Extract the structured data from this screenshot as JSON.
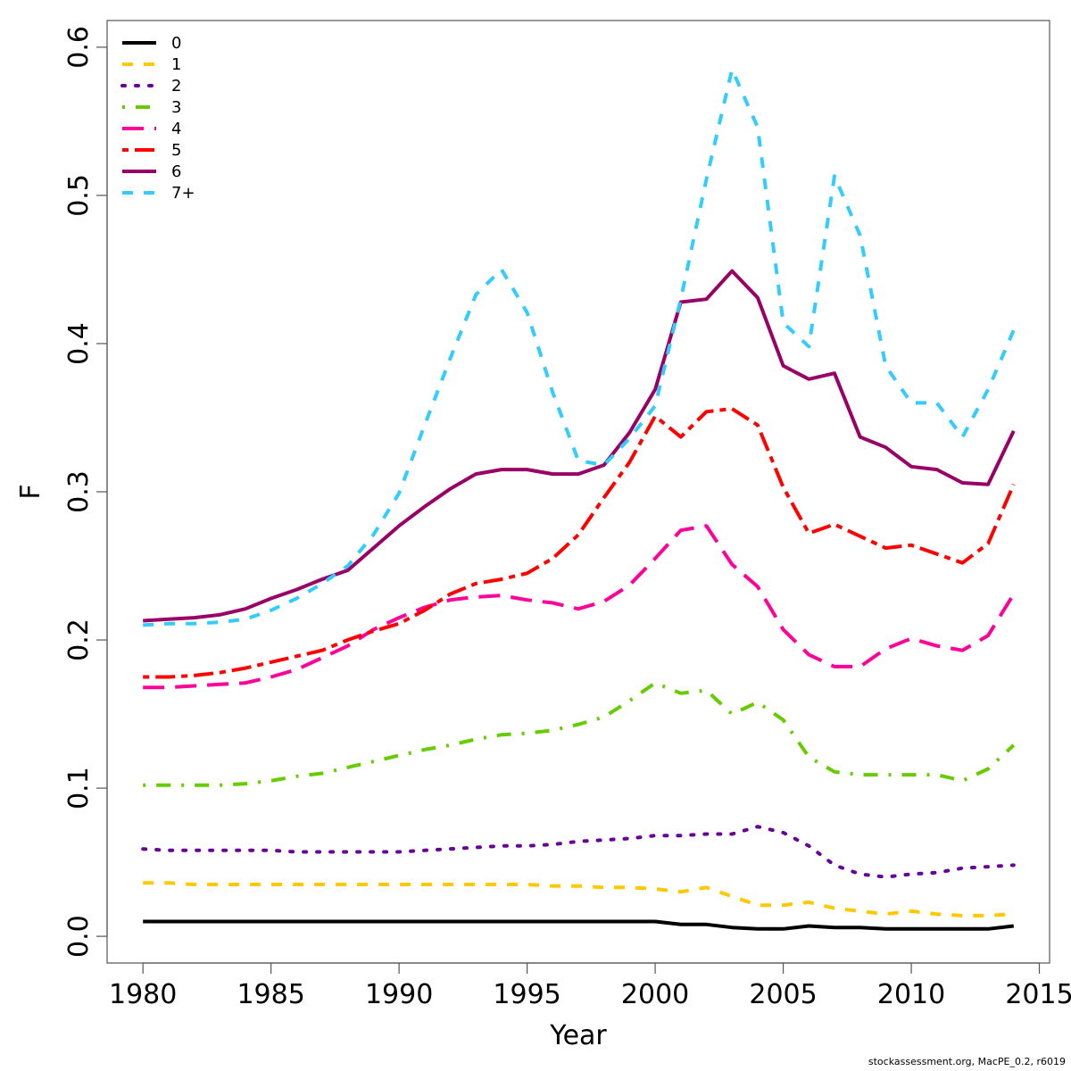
{
  "chart_data": {
    "type": "line",
    "title": "",
    "xlabel": "Year",
    "ylabel": "F",
    "xlim": [
      1978.6,
      2015.4
    ],
    "ylim": [
      -0.018,
      0.618
    ],
    "xticks": [
      1980,
      1985,
      1990,
      1995,
      2000,
      2005,
      2010,
      2015
    ],
    "yticks": [
      0.0,
      0.1,
      0.2,
      0.3,
      0.4,
      0.5,
      0.6
    ],
    "ytick_labels": [
      "0.0",
      "0.1",
      "0.2",
      "0.3",
      "0.4",
      "0.5",
      "0.6"
    ],
    "grid": false,
    "legend_position": "top-left",
    "x": [
      1980,
      1981,
      1982,
      1983,
      1984,
      1985,
      1986,
      1987,
      1988,
      1989,
      1990,
      1991,
      1992,
      1993,
      1994,
      1995,
      1996,
      1997,
      1998,
      1999,
      2000,
      2001,
      2002,
      2003,
      2004,
      2005,
      2006,
      2007,
      2008,
      2009,
      2010,
      2011,
      2012,
      2013,
      2014
    ],
    "series": [
      {
        "name": "0",
        "color": "#000000",
        "dash": "solid",
        "values": [
          0.01,
          0.01,
          0.01,
          0.01,
          0.01,
          0.01,
          0.01,
          0.01,
          0.01,
          0.01,
          0.01,
          0.01,
          0.01,
          0.01,
          0.01,
          0.01,
          0.01,
          0.01,
          0.01,
          0.01,
          0.01,
          0.008,
          0.008,
          0.006,
          0.005,
          0.005,
          0.007,
          0.006,
          0.006,
          0.005,
          0.005,
          0.005,
          0.005,
          0.005,
          0.007
        ]
      },
      {
        "name": "1",
        "color": "#FFC800",
        "dash": "dashed",
        "values": [
          0.036,
          0.036,
          0.035,
          0.035,
          0.035,
          0.035,
          0.035,
          0.035,
          0.035,
          0.035,
          0.035,
          0.035,
          0.035,
          0.035,
          0.035,
          0.035,
          0.034,
          0.034,
          0.033,
          0.033,
          0.032,
          0.03,
          0.033,
          0.027,
          0.021,
          0.021,
          0.023,
          0.019,
          0.017,
          0.015,
          0.017,
          0.015,
          0.014,
          0.014,
          0.015
        ]
      },
      {
        "name": "2",
        "color": "#660099",
        "dash": "dotted",
        "values": [
          0.059,
          0.058,
          0.058,
          0.058,
          0.058,
          0.058,
          0.057,
          0.057,
          0.057,
          0.057,
          0.057,
          0.058,
          0.059,
          0.06,
          0.061,
          0.061,
          0.062,
          0.064,
          0.065,
          0.066,
          0.068,
          0.068,
          0.069,
          0.069,
          0.074,
          0.07,
          0.061,
          0.048,
          0.042,
          0.04,
          0.042,
          0.043,
          0.046,
          0.047,
          0.048
        ]
      },
      {
        "name": "3",
        "color": "#66CC00",
        "dash": "dotdash",
        "values": [
          0.102,
          0.102,
          0.102,
          0.102,
          0.103,
          0.105,
          0.108,
          0.11,
          0.114,
          0.118,
          0.122,
          0.126,
          0.129,
          0.133,
          0.136,
          0.137,
          0.139,
          0.143,
          0.148,
          0.159,
          0.171,
          0.164,
          0.166,
          0.15,
          0.158,
          0.146,
          0.121,
          0.111,
          0.109,
          0.109,
          0.109,
          0.109,
          0.105,
          0.113,
          0.129
        ]
      },
      {
        "name": "4",
        "color": "#FF0099",
        "dash": "longdash",
        "values": [
          0.168,
          0.168,
          0.169,
          0.17,
          0.171,
          0.175,
          0.18,
          0.188,
          0.196,
          0.207,
          0.215,
          0.222,
          0.227,
          0.229,
          0.23,
          0.227,
          0.225,
          0.221,
          0.226,
          0.237,
          0.255,
          0.274,
          0.277,
          0.251,
          0.236,
          0.207,
          0.19,
          0.182,
          0.182,
          0.194,
          0.201,
          0.196,
          0.193,
          0.203,
          0.231
        ]
      },
      {
        "name": "5",
        "color": "#FF0000",
        "dash": "twodash",
        "values": [
          0.175,
          0.175,
          0.176,
          0.178,
          0.181,
          0.185,
          0.189,
          0.193,
          0.2,
          0.206,
          0.211,
          0.22,
          0.231,
          0.238,
          0.241,
          0.245,
          0.255,
          0.271,
          0.296,
          0.32,
          0.351,
          0.337,
          0.354,
          0.356,
          0.345,
          0.303,
          0.272,
          0.278,
          0.27,
          0.262,
          0.264,
          0.258,
          0.252,
          0.265,
          0.305
        ]
      },
      {
        "name": "6",
        "color": "#990066",
        "dash": "solid",
        "values": [
          0.213,
          0.214,
          0.215,
          0.217,
          0.221,
          0.228,
          0.234,
          0.241,
          0.247,
          0.262,
          0.277,
          0.29,
          0.302,
          0.312,
          0.315,
          0.315,
          0.312,
          0.312,
          0.318,
          0.34,
          0.369,
          0.428,
          0.43,
          0.449,
          0.431,
          0.385,
          0.376,
          0.38,
          0.337,
          0.33,
          0.317,
          0.315,
          0.306,
          0.305,
          0.341
        ]
      },
      {
        "name": "7+",
        "color": "#33CCFF",
        "dash": "dashed",
        "values": [
          0.21,
          0.211,
          0.211,
          0.212,
          0.214,
          0.22,
          0.228,
          0.238,
          0.25,
          0.271,
          0.299,
          0.345,
          0.39,
          0.433,
          0.45,
          0.421,
          0.367,
          0.321,
          0.318,
          0.336,
          0.358,
          0.43,
          0.511,
          0.585,
          0.546,
          0.414,
          0.398,
          0.513,
          0.473,
          0.385,
          0.36,
          0.36,
          0.337,
          0.369,
          0.409
        ]
      }
    ]
  },
  "footer": {
    "credit": "stockassessment.org, MacPE_0.2, r6019"
  }
}
